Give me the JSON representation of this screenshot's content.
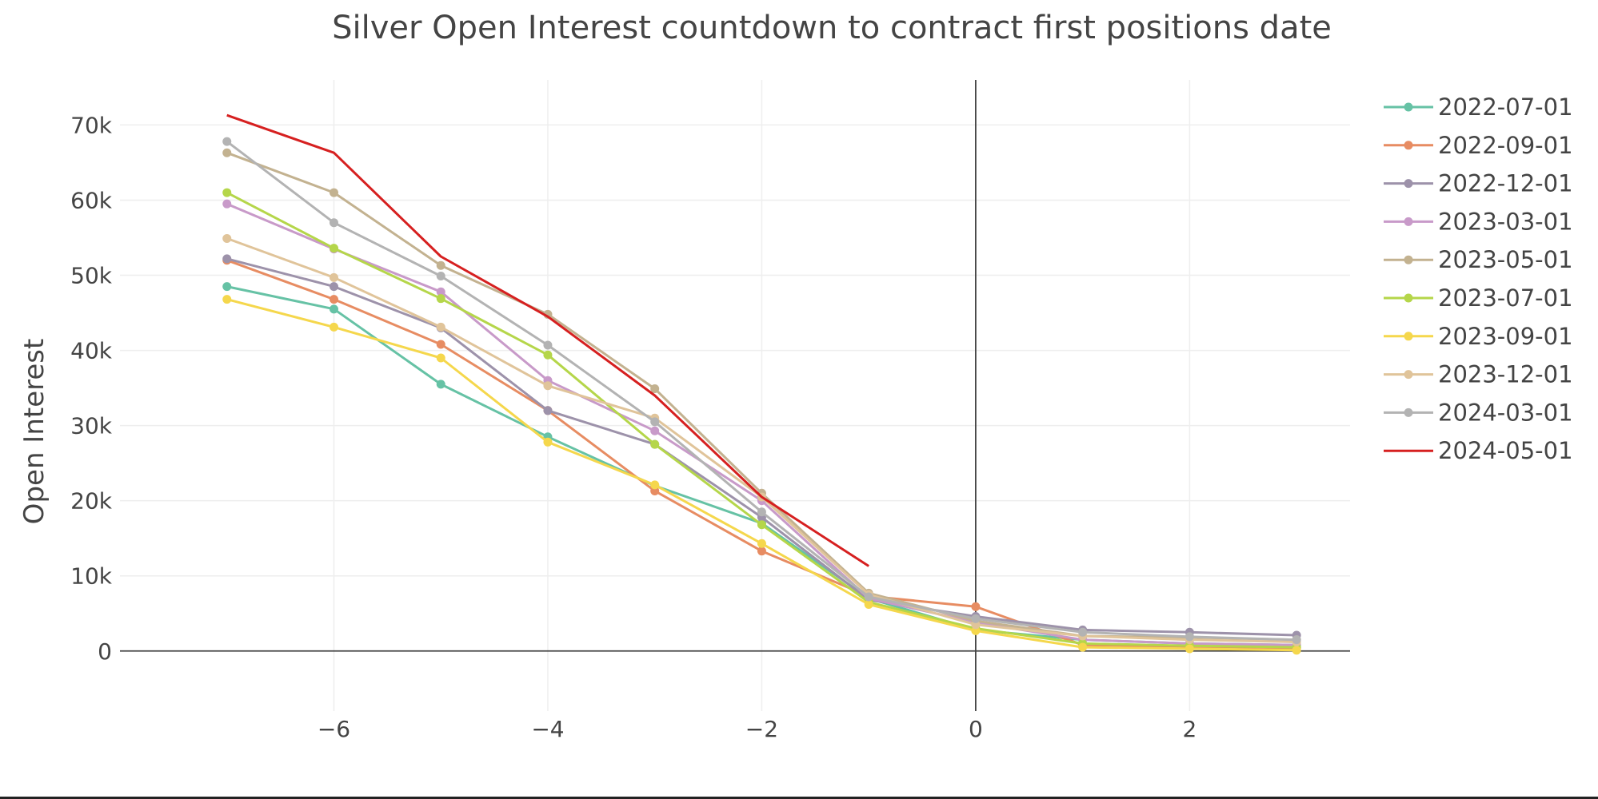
{
  "chart_data": {
    "type": "line",
    "title": "Silver Open Interest countdown to contract first positions date",
    "xlabel": "",
    "ylabel": "Open Interest",
    "xlim": [
      -8,
      3.5
    ],
    "ylim": [
      -8000,
      76000
    ],
    "x_ticks": [
      -6,
      -4,
      -2,
      0,
      2
    ],
    "x_tick_labels": [
      "−6",
      "−4",
      "−2",
      "0",
      "2"
    ],
    "y_ticks": [
      0,
      10000,
      20000,
      30000,
      40000,
      50000,
      60000,
      70000
    ],
    "y_tick_labels": [
      "0",
      "10k",
      "20k",
      "30k",
      "40k",
      "50k",
      "60k",
      "70k"
    ],
    "grid": true,
    "legend_position": "right",
    "series": [
      {
        "name": "2022-07-01",
        "color": "#66c2a5",
        "markers": true,
        "x": [
          -7,
          -6,
          -5,
          -4,
          -3,
          -2,
          -1,
          0,
          1,
          2,
          3
        ],
        "y": [
          48500,
          45500,
          35500,
          28500,
          22000,
          17000,
          7000,
          2800,
          1500,
          1000,
          800
        ]
      },
      {
        "name": "2022-09-01",
        "color": "#e78c62",
        "markers": true,
        "x": [
          -7,
          -6,
          -5,
          -4,
          -3,
          -2,
          -1,
          0,
          1,
          2,
          3
        ],
        "y": [
          52000,
          46800,
          40800,
          32000,
          21300,
          13300,
          7300,
          5900,
          800,
          600,
          400
        ]
      },
      {
        "name": "2022-12-01",
        "color": "#9d92aa",
        "markers": true,
        "x": [
          -7,
          -6,
          -5,
          -4,
          -3,
          -2,
          -1,
          0,
          1,
          2,
          3
        ],
        "y": [
          52200,
          48500,
          43000,
          32000,
          27500,
          17800,
          6800,
          4600,
          2800,
          2500,
          2100
        ]
      },
      {
        "name": "2023-03-01",
        "color": "#c89ac9",
        "markers": true,
        "x": [
          -7,
          -6,
          -5,
          -4,
          -3,
          -2,
          -1,
          0,
          1,
          2,
          3
        ],
        "y": [
          59500,
          53500,
          47800,
          36000,
          29300,
          20000,
          7000,
          3800,
          1500,
          1000,
          800
        ]
      },
      {
        "name": "2023-05-01",
        "color": "#c3b290",
        "markers": true,
        "x": [
          -7,
          -6,
          -5,
          -4,
          -3,
          -2,
          -1,
          0,
          1,
          2,
          3
        ],
        "y": [
          66300,
          61000,
          51300,
          44800,
          34900,
          21000,
          7700,
          4000,
          2000,
          1800,
          1500
        ]
      },
      {
        "name": "2023-07-01",
        "color": "#b5d64a",
        "markers": true,
        "x": [
          -7,
          -6,
          -5,
          -4,
          -3,
          -2,
          -1,
          0,
          1,
          2,
          3
        ],
        "y": [
          61000,
          53600,
          46900,
          39400,
          27500,
          16800,
          6500,
          3000,
          1000,
          700,
          500
        ]
      },
      {
        "name": "2023-09-01",
        "color": "#f5d74c",
        "markers": true,
        "x": [
          -7,
          -6,
          -5,
          -4,
          -3,
          -2,
          -1,
          0,
          1,
          2,
          3
        ],
        "y": [
          46800,
          43100,
          39000,
          27800,
          22100,
          14300,
          6200,
          2700,
          500,
          300,
          100
        ]
      },
      {
        "name": "2023-12-01",
        "color": "#e0c49a",
        "markers": true,
        "x": [
          -7,
          -6,
          -5,
          -4,
          -3,
          -2,
          -1,
          0,
          1,
          2,
          3
        ],
        "y": [
          54900,
          49700,
          43100,
          35300,
          31000,
          20500,
          7500,
          3500,
          2000,
          1500,
          1200
        ]
      },
      {
        "name": "2024-03-01",
        "color": "#b3b3b3",
        "markers": true,
        "x": [
          -7,
          -6,
          -5,
          -4,
          -3,
          -2,
          -1,
          0,
          1,
          2,
          3
        ],
        "y": [
          67800,
          57000,
          49900,
          40700,
          30500,
          18500,
          7200,
          4300,
          2500,
          1900,
          1500
        ]
      },
      {
        "name": "2024-05-01",
        "color": "#d62020",
        "markers": false,
        "x": [
          -7,
          -6,
          -5,
          -4,
          -3,
          -2,
          -1
        ],
        "y": [
          71300,
          66300,
          52500,
          44500,
          34000,
          20500,
          11300
        ]
      }
    ]
  }
}
